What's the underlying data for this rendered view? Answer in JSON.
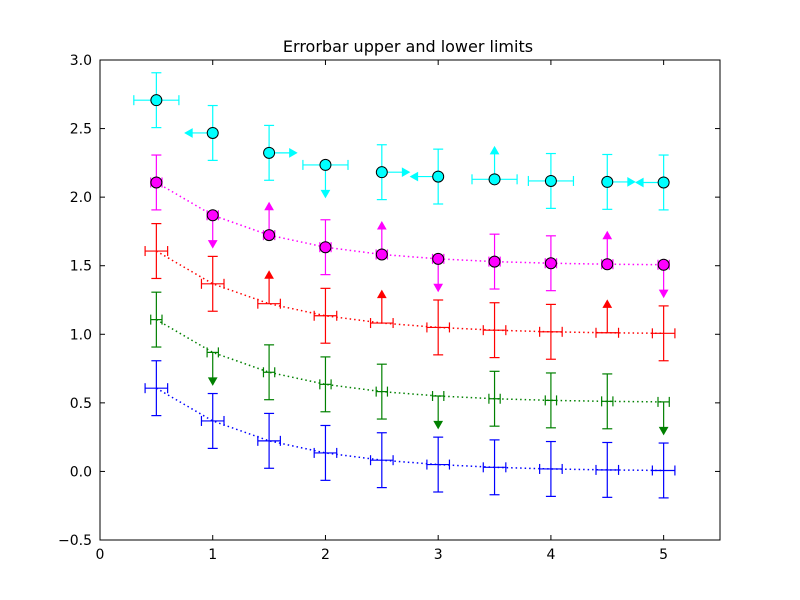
{
  "chart_data": {
    "type": "errorbar",
    "title": "Errorbar upper and lower limits",
    "xlabel": "",
    "ylabel": "",
    "xlim": [
      0,
      5.5
    ],
    "ylim": [
      -0.5,
      3.0
    ],
    "x_ticks": [
      0,
      1,
      2,
      3,
      4,
      5
    ],
    "x_tick_labels": [
      "0",
      "1",
      "2",
      "3",
      "4",
      "5"
    ],
    "y_ticks": [
      -0.5,
      0.0,
      0.5,
      1.0,
      1.5,
      2.0,
      2.5,
      3.0
    ],
    "y_tick_labels": [
      "−0.5",
      "0.0",
      "0.5",
      "1.0",
      "1.5",
      "2.0",
      "2.5",
      "3.0"
    ],
    "grid": false,
    "legend": false,
    "x": [
      0.5,
      1.0,
      1.5,
      2.0,
      2.5,
      3.0,
      3.5,
      4.0,
      4.5,
      5.0
    ],
    "series": [
      {
        "color": "#0000ff",
        "linestyle": "dotted",
        "marker": "none",
        "y": [
          0.607,
          0.368,
          0.223,
          0.135,
          0.082,
          0.05,
          0.03,
          0.018,
          0.011,
          0.007
        ],
        "yerr": 0.2,
        "xerr": 0.1,
        "y_limit": [
          "none",
          "none",
          "none",
          "none",
          "none",
          "none",
          "none",
          "none",
          "none",
          "none"
        ],
        "x_limit": [
          "none",
          "none",
          "none",
          "none",
          "none",
          "none",
          "none",
          "none",
          "none",
          "none"
        ]
      },
      {
        "color": "#008000",
        "linestyle": "dotted",
        "marker": "none",
        "y": [
          1.107,
          0.868,
          0.723,
          0.635,
          0.582,
          0.55,
          0.53,
          0.518,
          0.511,
          0.507
        ],
        "yerr": 0.2,
        "xerr": 0.05,
        "y_limit": [
          "none",
          "upper",
          "none",
          "none",
          "none",
          "upper",
          "none",
          "none",
          "none",
          "upper"
        ],
        "x_limit": [
          "none",
          "none",
          "none",
          "none",
          "none",
          "none",
          "none",
          "none",
          "none",
          "none"
        ]
      },
      {
        "color": "#ff0000",
        "linestyle": "dotted",
        "marker": "none",
        "y": [
          1.607,
          1.368,
          1.223,
          1.135,
          1.082,
          1.05,
          1.03,
          1.018,
          1.011,
          1.007
        ],
        "yerr": 0.2,
        "xerr": 0.1,
        "y_limit": [
          "none",
          "none",
          "lower",
          "none",
          "lower",
          "none",
          "none",
          "none",
          "lower",
          "none"
        ],
        "x_limit": [
          "none",
          "none",
          "none",
          "none",
          "none",
          "none",
          "none",
          "none",
          "none",
          "none"
        ]
      },
      {
        "color": "#ff00ff",
        "linestyle": "dotted",
        "marker": "o",
        "marker_face": "#ff00ff",
        "y": [
          2.107,
          1.868,
          1.723,
          1.635,
          1.582,
          1.55,
          1.53,
          1.518,
          1.511,
          1.507
        ],
        "yerr": 0.2,
        "xerr": 0.05,
        "y_limit": [
          "none",
          "upper",
          "lower",
          "none",
          "lower",
          "upper",
          "none",
          "none",
          "lower",
          "upper"
        ],
        "x_limit": [
          "none",
          "none",
          "none",
          "none",
          "none",
          "none",
          "none",
          "none",
          "none",
          "none"
        ]
      },
      {
        "color": "#00ffff",
        "linestyle": "none",
        "marker": "o",
        "marker_face": "#00ffff",
        "y": [
          2.707,
          2.468,
          2.323,
          2.235,
          2.182,
          2.15,
          2.13,
          2.118,
          2.111,
          2.107
        ],
        "yerr": 0.2,
        "xerr": 0.2,
        "y_limit": [
          "none",
          "none",
          "none",
          "upper",
          "none",
          "none",
          "lower",
          "none",
          "none",
          "none"
        ],
        "x_limit": [
          "none",
          "upper",
          "lower",
          "none",
          "lower",
          "upper",
          "none",
          "none",
          "lower",
          "upper"
        ]
      }
    ]
  }
}
